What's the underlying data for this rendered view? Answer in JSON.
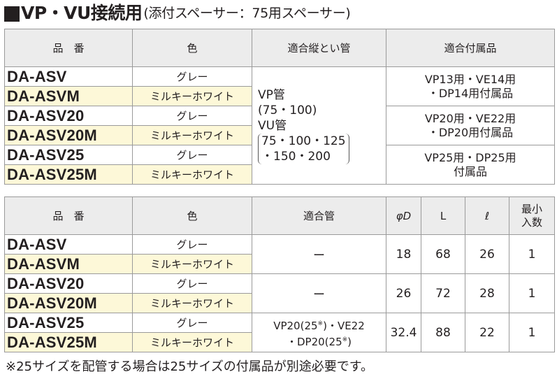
{
  "title": {
    "main": "VP・VU接続用",
    "sub": "(添付スペーサー：75用スペーサー)"
  },
  "table1": {
    "headers": [
      "品　番",
      "色",
      "適合縦とい管",
      "適合付属品"
    ],
    "rows": [
      {
        "code": "DA-ASV",
        "color": "グレー"
      },
      {
        "code": "DA-ASVM",
        "color": "ミルキーホワイト"
      },
      {
        "code": "DA-ASV20",
        "color": "グレー"
      },
      {
        "code": "DA-ASV20M",
        "color": "ミルキーホワイト"
      },
      {
        "code": "DA-ASV25",
        "color": "グレー"
      },
      {
        "code": "DA-ASV25M",
        "color": "ミルキーホワイト"
      }
    ],
    "pipe": {
      "vp": "VP管",
      "vp_sizes": "(75・100)",
      "vu": "VU管",
      "vu_sizes_1": "75・100・125",
      "vu_sizes_2": "・150・200"
    },
    "accessories": [
      {
        "line1": "VP13用・VE14用",
        "line2": "・DP14用付属品"
      },
      {
        "line1": "VP20用・VE22用",
        "line2": "・DP20用付属品"
      },
      {
        "line1": "VP25用・DP25用",
        "line2": "付属品"
      }
    ]
  },
  "table2": {
    "headers": {
      "code": "品　番",
      "color": "色",
      "pipe": "適合管",
      "phiD": "φD",
      "L": "L",
      "l": "ℓ",
      "min1": "最小",
      "min2": "入数"
    },
    "rows": [
      {
        "code": "DA-ASV",
        "color": "グレー"
      },
      {
        "code": "DA-ASVM",
        "color": "ミルキーホワイト"
      },
      {
        "code": "DA-ASV20",
        "color": "グレー"
      },
      {
        "code": "DA-ASV20M",
        "color": "ミルキーホワイト"
      },
      {
        "code": "DA-ASV25",
        "color": "グレー"
      },
      {
        "code": "DA-ASV25M",
        "color": "ミルキーホワイト"
      }
    ],
    "groups": [
      {
        "pipe": "ー",
        "phiD": "18",
        "L": "68",
        "l": "26",
        "qty": "1"
      },
      {
        "pipe": "ー",
        "phiD": "26",
        "L": "72",
        "l": "28",
        "qty": "1"
      },
      {
        "pipe_line1a": "VP20(25",
        "pipe_mark": "※",
        "pipe_line1b": ")・VE22",
        "pipe_line2a": "・DP20(25",
        "pipe_line2b": ")",
        "phiD": "32.4",
        "L": "88",
        "l": "22",
        "qty": "1"
      }
    ]
  },
  "note": "※25サイズを配管する場合は25サイズの付属品が別途必要です。",
  "colors": {
    "header_bg": "#ececec",
    "milky_row_bg": "#fdf8d8",
    "border": "#9a9a9a"
  }
}
